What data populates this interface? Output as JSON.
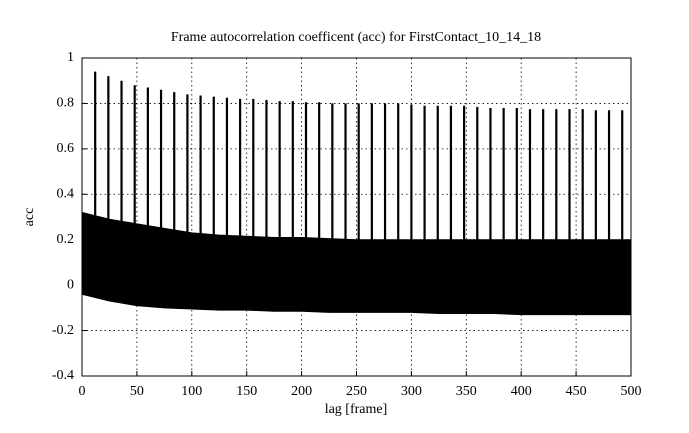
{
  "chart_data": {
    "type": "line",
    "title": "Frame autocorrelation coefficent (acc) for FirstContact_10_14_18",
    "xlabel": "lag [frame]",
    "ylabel": "acc",
    "color": "#000000",
    "xlim": [
      0,
      500
    ],
    "ylim": [
      -0.4,
      1
    ],
    "xticks": [
      0,
      50,
      100,
      150,
      200,
      250,
      300,
      350,
      400,
      450,
      500
    ],
    "yticks": [
      -0.4,
      -0.2,
      0,
      0.2,
      0.4,
      0.6,
      0.8,
      1
    ],
    "grid": true,
    "band": {
      "x": [
        0,
        25,
        50,
        75,
        100,
        125,
        150,
        175,
        200,
        225,
        250,
        275,
        300,
        325,
        350,
        375,
        400,
        425,
        450,
        475,
        500
      ],
      "upper": [
        0.32,
        0.29,
        0.27,
        0.25,
        0.23,
        0.22,
        0.215,
        0.21,
        0.21,
        0.205,
        0.2,
        0.2,
        0.2,
        0.2,
        0.2,
        0.2,
        0.2,
        0.2,
        0.2,
        0.2,
        0.2
      ],
      "lower": [
        -0.04,
        -0.07,
        -0.09,
        -0.1,
        -0.105,
        -0.11,
        -0.11,
        -0.115,
        -0.115,
        -0.12,
        -0.12,
        -0.12,
        -0.12,
        -0.125,
        -0.125,
        -0.125,
        -0.13,
        -0.13,
        -0.13,
        -0.13,
        -0.13
      ]
    },
    "spikes": {
      "x": [
        12,
        24,
        36,
        48,
        60,
        72,
        84,
        96,
        108,
        120,
        132,
        144,
        156,
        168,
        180,
        192,
        204,
        216,
        228,
        240,
        252,
        264,
        276,
        288,
        300,
        312,
        324,
        336,
        348,
        360,
        372,
        384,
        396,
        408,
        420,
        432,
        444,
        456,
        468,
        480,
        492
      ],
      "values": [
        0.94,
        0.92,
        0.9,
        0.88,
        0.87,
        0.86,
        0.85,
        0.84,
        0.835,
        0.83,
        0.825,
        0.82,
        0.82,
        0.815,
        0.81,
        0.81,
        0.805,
        0.805,
        0.8,
        0.8,
        0.8,
        0.8,
        0.8,
        0.8,
        0.795,
        0.79,
        0.79,
        0.79,
        0.79,
        0.785,
        0.78,
        0.78,
        0.78,
        0.775,
        0.775,
        0.775,
        0.775,
        0.775,
        0.77,
        0.77,
        0.77
      ]
    }
  }
}
